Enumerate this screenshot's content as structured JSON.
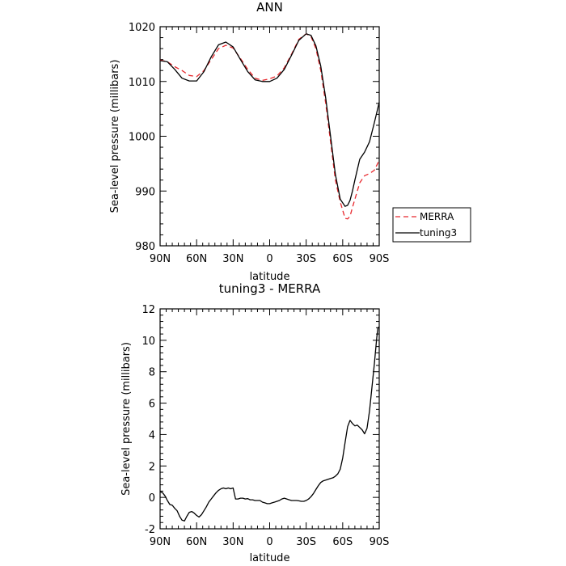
{
  "chart_data": [
    {
      "type": "line",
      "title": "ANN",
      "xlabel": "latitude",
      "ylabel": "Sea-level pressure (millibars)",
      "xlim": [
        90,
        -90
      ],
      "ylim": [
        980,
        1020
      ],
      "x_ticks": [
        90,
        60,
        30,
        0,
        -30,
        -60,
        -90
      ],
      "x_tick_labels": [
        "90N",
        "60N",
        "30N",
        "0",
        "30S",
        "60S",
        "90S"
      ],
      "y_ticks": [
        980,
        990,
        1000,
        1010,
        1020
      ],
      "y_tick_labels": [
        "980",
        "990",
        "1000",
        "1010",
        "1020"
      ],
      "legend_position": "right",
      "series": [
        {
          "name": "MERRA",
          "color": "#e8282d",
          "dash": "6,4",
          "x": [
            90,
            84,
            78,
            72,
            66,
            60,
            54,
            48,
            42,
            36,
            30,
            24,
            18,
            12,
            6,
            0,
            -6,
            -12,
            -18,
            -24,
            -30,
            -34,
            -38,
            -42,
            -46,
            -50,
            -54,
            -58,
            -62,
            -64,
            -66,
            -68,
            -70,
            -74,
            -78,
            -82,
            -86,
            -90
          ],
          "y": [
            1013.9,
            1013.6,
            1012.7,
            1012.0,
            1011.1,
            1010.9,
            1012.0,
            1014.0,
            1016.0,
            1016.6,
            1016.1,
            1014.2,
            1012.2,
            1010.6,
            1010.2,
            1010.5,
            1011.0,
            1012.5,
            1015.0,
            1017.7,
            1018.7,
            1018.2,
            1016.0,
            1012.0,
            1006.0,
            999.0,
            992.0,
            988.0,
            985.0,
            984.9,
            985.4,
            987.0,
            988.5,
            991.5,
            992.8,
            993.2,
            993.8,
            995.6
          ]
        },
        {
          "name": "tuning3",
          "color": "#000000",
          "dash": "",
          "x": [
            90,
            84,
            78,
            72,
            66,
            60,
            54,
            48,
            42,
            36,
            30,
            24,
            18,
            12,
            6,
            0,
            -6,
            -12,
            -18,
            -24,
            -30,
            -34,
            -38,
            -42,
            -46,
            -50,
            -54,
            -58,
            -62,
            -64,
            -66,
            -68,
            -70,
            -74,
            -78,
            -82,
            -86,
            -90
          ],
          "y": [
            1013.8,
            1013.6,
            1012.2,
            1010.6,
            1010.1,
            1010.1,
            1011.8,
            1014.5,
            1016.7,
            1017.2,
            1016.3,
            1014.0,
            1011.8,
            1010.3,
            1010.0,
            1010.0,
            1010.6,
            1012.2,
            1014.8,
            1017.5,
            1018.7,
            1018.4,
            1016.5,
            1012.8,
            1007.0,
            1000.0,
            993.0,
            988.5,
            987.2,
            987.4,
            988.3,
            990.0,
            992.0,
            995.8,
            997.1,
            999.0,
            1002.5,
            1006.2
          ]
        }
      ]
    },
    {
      "type": "line",
      "title": "tuning3 - MERRA",
      "xlabel": "latitude",
      "ylabel": "Sea-level pressure (millibars)",
      "xlim": [
        90,
        -90
      ],
      "ylim": [
        -2,
        12
      ],
      "x_ticks": [
        90,
        60,
        30,
        0,
        -30,
        -60,
        -90
      ],
      "x_tick_labels": [
        "90N",
        "60N",
        "30N",
        "0",
        "30S",
        "60S",
        "90S"
      ],
      "y_ticks": [
        -2,
        0,
        2,
        4,
        6,
        8,
        10,
        12
      ],
      "y_tick_labels": [
        "-2",
        "0",
        "2",
        "4",
        "6",
        "8",
        "10",
        "12"
      ],
      "series": [
        {
          "color": "#000000",
          "x": [
            90,
            88,
            86,
            84,
            82,
            80,
            78,
            76,
            74,
            72,
            70,
            68,
            66,
            64,
            62,
            60,
            58,
            56,
            54,
            52,
            50,
            48,
            46,
            44,
            42,
            40,
            38,
            36,
            34,
            32,
            30,
            28,
            26,
            24,
            22,
            20,
            18,
            16,
            14,
            12,
            10,
            8,
            6,
            4,
            2,
            0,
            -2,
            -4,
            -6,
            -8,
            -10,
            -12,
            -14,
            -16,
            -18,
            -20,
            -22,
            -24,
            -26,
            -28,
            -30,
            -32,
            -34,
            -36,
            -38,
            -40,
            -42,
            -44,
            -46,
            -48,
            -50,
            -52,
            -54,
            -56,
            -58,
            -60,
            -62,
            -64,
            -66,
            -68,
            -70,
            -72,
            -74,
            -76,
            -78,
            -80,
            -82,
            -84,
            -86,
            -88,
            -89,
            -90
          ],
          "y": [
            0.35,
            0.3,
            0.1,
            -0.2,
            -0.45,
            -0.5,
            -0.7,
            -0.85,
            -1.2,
            -1.45,
            -1.5,
            -1.2,
            -0.95,
            -0.9,
            -1.0,
            -1.15,
            -1.25,
            -1.1,
            -0.85,
            -0.6,
            -0.3,
            -0.1,
            0.1,
            0.3,
            0.45,
            0.55,
            0.6,
            0.55,
            0.6,
            0.55,
            0.6,
            -0.1,
            -0.1,
            -0.05,
            -0.05,
            -0.1,
            -0.08,
            -0.15,
            -0.15,
            -0.2,
            -0.2,
            -0.2,
            -0.3,
            -0.35,
            -0.4,
            -0.4,
            -0.35,
            -0.3,
            -0.25,
            -0.2,
            -0.1,
            -0.05,
            -0.1,
            -0.15,
            -0.2,
            -0.2,
            -0.2,
            -0.22,
            -0.25,
            -0.25,
            -0.2,
            -0.1,
            0.05,
            0.25,
            0.5,
            0.75,
            0.95,
            1.05,
            1.1,
            1.15,
            1.2,
            1.25,
            1.35,
            1.5,
            1.8,
            2.5,
            3.5,
            4.5,
            4.9,
            4.7,
            4.55,
            4.6,
            4.45,
            4.3,
            4.05,
            4.4,
            5.5,
            7.0,
            8.5,
            10.2,
            10.8,
            10.85
          ]
        }
      ]
    }
  ]
}
